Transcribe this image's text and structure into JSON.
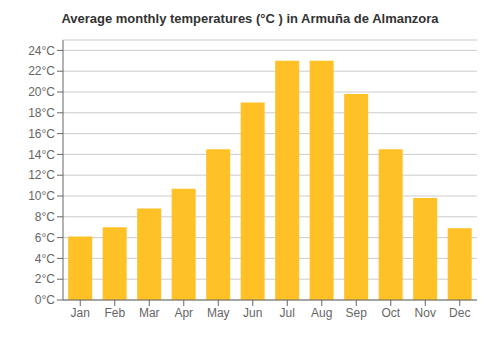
{
  "chart_data": {
    "type": "bar",
    "title": "Average monthly temperatures (°C ) in Armuña de Almanzora",
    "categories": [
      "Jan",
      "Feb",
      "Mar",
      "Apr",
      "May",
      "Jun",
      "Jul",
      "Aug",
      "Sep",
      "Oct",
      "Nov",
      "Dec"
    ],
    "values": [
      6.1,
      7.0,
      8.8,
      10.7,
      14.5,
      19.0,
      23.0,
      23.0,
      19.8,
      14.5,
      9.8,
      6.9
    ],
    "color": "#FFC125",
    "ylim": [
      0,
      25
    ],
    "yticks": [
      {
        "value": 0,
        "label": "0°C"
      },
      {
        "value": 2,
        "label": "2°C"
      },
      {
        "value": 4,
        "label": "4°C"
      },
      {
        "value": 6,
        "label": "6°C"
      },
      {
        "value": 8,
        "label": "8°C"
      },
      {
        "value": 10,
        "label": "10°C"
      },
      {
        "value": 12,
        "label": "12°C"
      },
      {
        "value": 14,
        "label": "14°C"
      },
      {
        "value": 16,
        "label": "16°C"
      },
      {
        "value": 18,
        "label": "18°C"
      },
      {
        "value": 20,
        "label": "20°C"
      },
      {
        "value": 22,
        "label": "22°C"
      },
      {
        "value": 24,
        "label": "24°C"
      }
    ],
    "grid": true
  }
}
